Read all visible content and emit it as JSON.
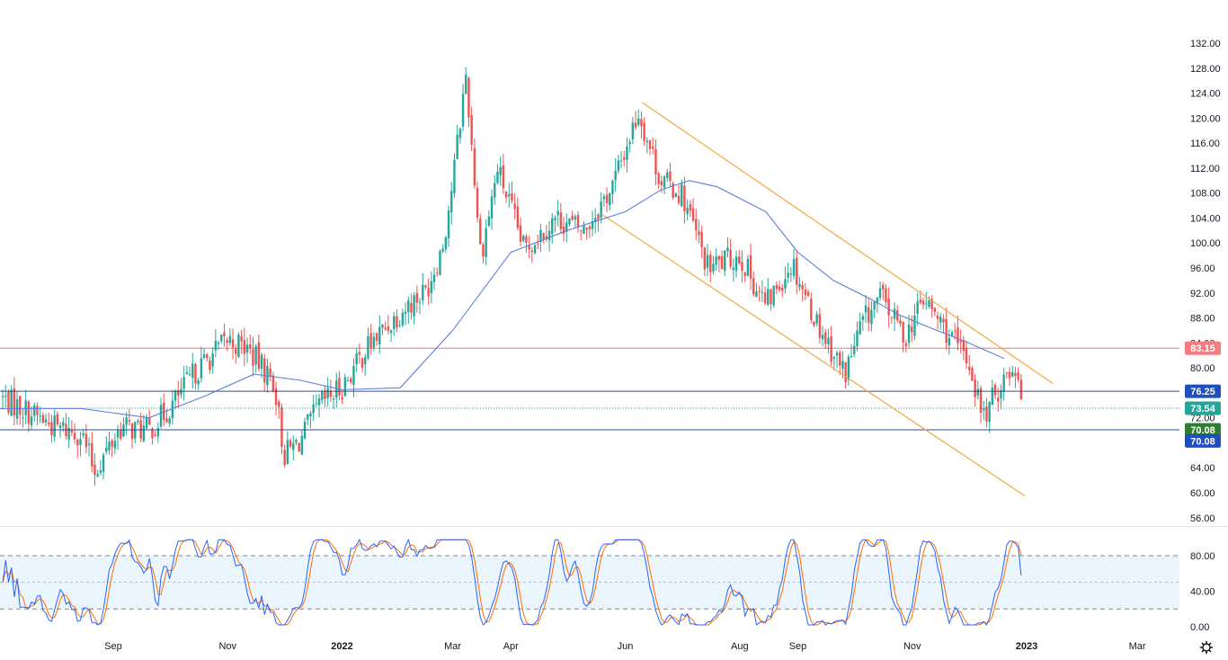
{
  "colors": {
    "up": "#26a69a",
    "down": "#ef5350",
    "ma": "#5b7fdb",
    "channel": "#f7a440",
    "resistance": "#f23645",
    "support": "#1e3a8a",
    "price_tag": "#26a69a",
    "green_tag": "#2e7d32",
    "blue_tag": "#1e4fbf",
    "stoch_k": "#2962ff",
    "stoch_d": "#ff6d00",
    "stoch_band": "#e3f2fd"
  },
  "chart_data": [
    {
      "type": "candlestick",
      "title": "",
      "xlabel": "",
      "ylabel": "",
      "ylim": [
        56,
        134
      ],
      "y_ticks": [
        "132.00",
        "128.00",
        "124.00",
        "120.00",
        "116.00",
        "112.00",
        "108.00",
        "104.00",
        "100.00",
        "96.00",
        "92.00",
        "88.00",
        "84.00",
        "80.00",
        "72.00",
        "64.00",
        "60.00",
        "56.00"
      ],
      "x_ticks": [
        "Sep",
        "Nov",
        "2022",
        "Mar",
        "Apr",
        "Jun",
        "Aug",
        "Sep",
        "Nov",
        "2023",
        "Mar"
      ],
      "x_tick_dates": [
        "2021-09-01",
        "2021-11-01",
        "2022-01-01",
        "2022-03-01",
        "2022-04-01",
        "2022-06-01",
        "2022-08-01",
        "2022-09-01",
        "2022-11-01",
        "2023-01-01",
        "2023-03-01"
      ],
      "close_path": [
        [
          "2021-07-01",
          75.5
        ],
        [
          "2021-07-15",
          73.5
        ],
        [
          "2021-08-01",
          70.5
        ],
        [
          "2021-08-15",
          69.5
        ],
        [
          "2021-08-22",
          63.5
        ],
        [
          "2021-09-05",
          70.5
        ],
        [
          "2021-09-20",
          70.0
        ],
        [
          "2021-10-01",
          73.5
        ],
        [
          "2021-10-15",
          79.5
        ],
        [
          "2021-11-01",
          84.5
        ],
        [
          "2021-11-12",
          83.0
        ],
        [
          "2021-11-26",
          77.5
        ],
        [
          "2021-12-01",
          66.0
        ],
        [
          "2021-12-10",
          68.5
        ],
        [
          "2021-12-20",
          74.0
        ],
        [
          "2022-01-01",
          77.0
        ],
        [
          "2022-01-15",
          83.5
        ],
        [
          "2022-02-01",
          89.0
        ],
        [
          "2022-02-15",
          92.5
        ],
        [
          "2022-02-24",
          100.0
        ],
        [
          "2022-03-01",
          110.0
        ],
        [
          "2022-03-08",
          127.0
        ],
        [
          "2022-03-16",
          98.0
        ],
        [
          "2022-03-25",
          112.0
        ],
        [
          "2022-04-08",
          99.0
        ],
        [
          "2022-04-25",
          104.0
        ],
        [
          "2022-05-10",
          102.0
        ],
        [
          "2022-05-25",
          109.0
        ],
        [
          "2022-06-08",
          121.0
        ],
        [
          "2022-06-20",
          110.0
        ],
        [
          "2022-07-01",
          108.0
        ],
        [
          "2022-07-15",
          96.0
        ],
        [
          "2022-08-01",
          98.0
        ],
        [
          "2022-08-15",
          90.0
        ],
        [
          "2022-08-29",
          97.0
        ],
        [
          "2022-09-10",
          88.0
        ],
        [
          "2022-09-26",
          79.0
        ],
        [
          "2022-10-05",
          87.0
        ],
        [
          "2022-10-15",
          91.5
        ],
        [
          "2022-10-28",
          85.0
        ],
        [
          "2022-11-07",
          91.0
        ],
        [
          "2022-11-20",
          85.5
        ],
        [
          "2022-12-01",
          81.0
        ],
        [
          "2022-12-09",
          72.0
        ],
        [
          "2022-12-20",
          78.5
        ],
        [
          "2022-12-27",
          80.5
        ],
        [
          "2022-12-30",
          73.5
        ]
      ],
      "moving_average": [
        [
          "2021-07-01",
          73.5
        ],
        [
          "2021-08-15",
          73.5
        ],
        [
          "2021-09-20",
          72.0
        ],
        [
          "2021-10-20",
          75.5
        ],
        [
          "2021-11-15",
          79.0
        ],
        [
          "2021-12-10",
          78.0
        ],
        [
          "2022-01-01",
          76.5
        ],
        [
          "2022-02-01",
          76.8
        ],
        [
          "2022-03-01",
          86.0
        ],
        [
          "2022-04-01",
          98.5
        ],
        [
          "2022-05-01",
          102.0
        ],
        [
          "2022-06-01",
          105.0
        ],
        [
          "2022-06-20",
          108.5
        ],
        [
          "2022-07-05",
          110.0
        ],
        [
          "2022-07-20",
          109.0
        ],
        [
          "2022-08-15",
          105.0
        ],
        [
          "2022-09-01",
          98.5
        ],
        [
          "2022-09-20",
          94.0
        ],
        [
          "2022-10-10",
          91.0
        ],
        [
          "2022-10-25",
          88.5
        ],
        [
          "2022-11-10",
          86.5
        ],
        [
          "2022-12-01",
          84.0
        ],
        [
          "2022-12-20",
          81.5
        ]
      ],
      "channel": {
        "upper": [
          [
            "2022-06-10",
            122.5
          ],
          [
            "2023-01-15",
            77.5
          ]
        ],
        "lower": [
          [
            "2022-05-20",
            104.5
          ],
          [
            "2022-12-31",
            59.5
          ]
        ]
      },
      "levels": [
        {
          "label": "83.15",
          "value": 83.15,
          "style": "resistance"
        },
        {
          "label": "76.25",
          "value": 76.25,
          "style": "support"
        },
        {
          "label": "70.08",
          "value": 70.08,
          "style": "support"
        }
      ],
      "price_tags": [
        {
          "label": "73.54",
          "value": 73.54,
          "style": "price_tag"
        },
        {
          "label": "70.08",
          "value": 70.08,
          "style": "green_tag"
        },
        {
          "label": "70.08",
          "value": 68.3,
          "style": "blue_tag"
        }
      ]
    },
    {
      "type": "line",
      "title": "",
      "xlabel": "",
      "ylabel": "",
      "ylim": [
        0,
        100
      ],
      "y_ticks": [
        "80.00",
        "40.00",
        "0.00"
      ],
      "bands": [
        80,
        50,
        20
      ],
      "series": [
        {
          "name": "",
          "style": "stoch_k"
        },
        {
          "name": "",
          "style": "stoch_d"
        }
      ]
    }
  ]
}
